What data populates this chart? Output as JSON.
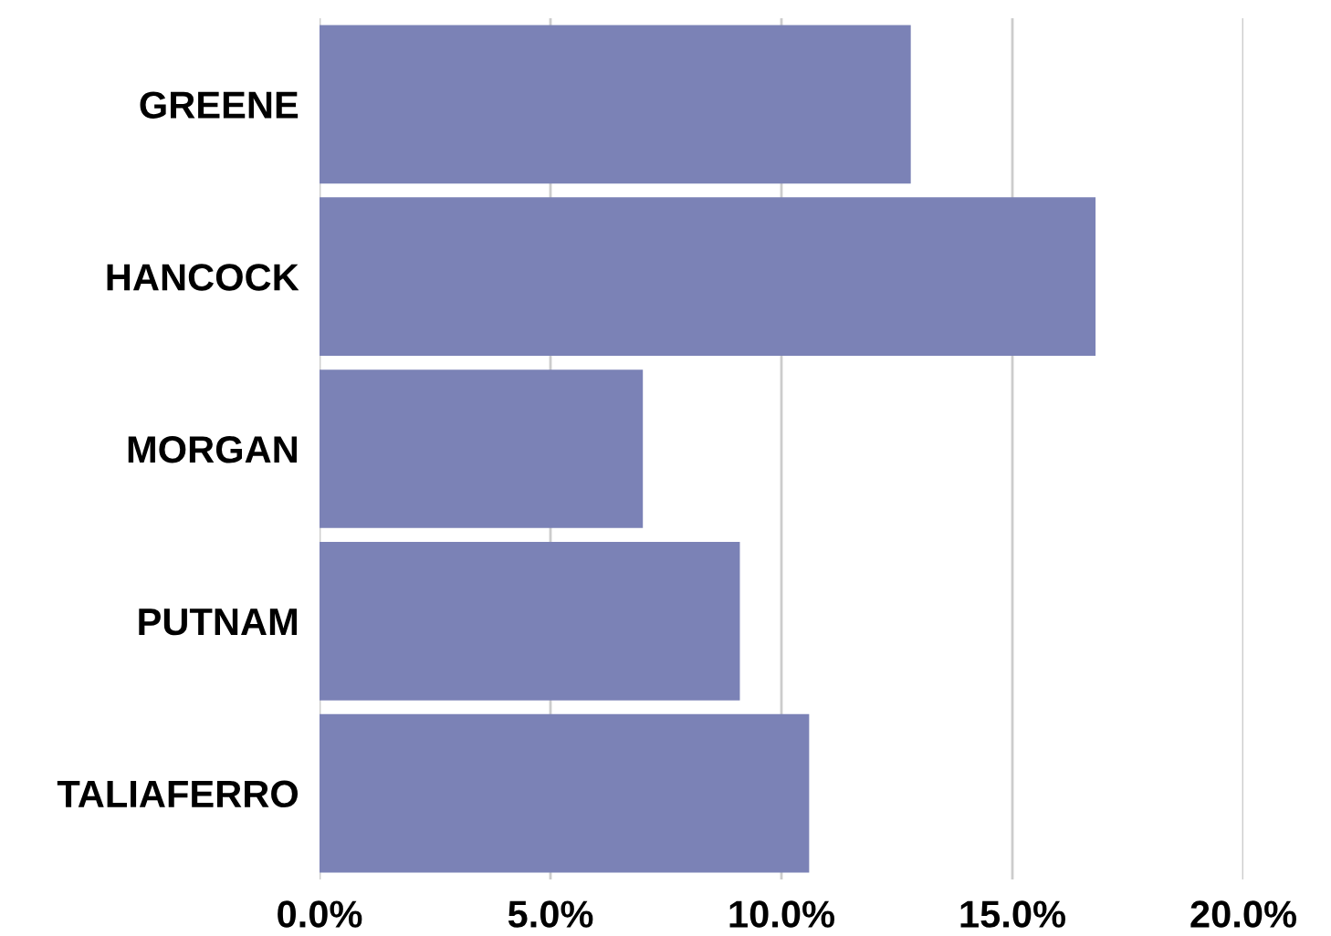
{
  "chart_data": {
    "type": "bar",
    "orientation": "horizontal",
    "categories": [
      "GREENE",
      "HANCOCK",
      "MORGAN",
      "PUTNAM",
      "TALIAFERRO"
    ],
    "values": [
      12.8,
      16.8,
      7.0,
      9.1,
      10.6
    ],
    "color": "#7b82b6",
    "xlim": [
      0,
      20
    ],
    "xticks": [
      {
        "value": 0,
        "label": "0.0%"
      },
      {
        "value": 5,
        "label": "5.0%"
      },
      {
        "value": 10,
        "label": "10.0%"
      },
      {
        "value": 15,
        "label": "15.0%"
      },
      {
        "value": 20,
        "label": "20.0%"
      }
    ],
    "grid": "x"
  }
}
